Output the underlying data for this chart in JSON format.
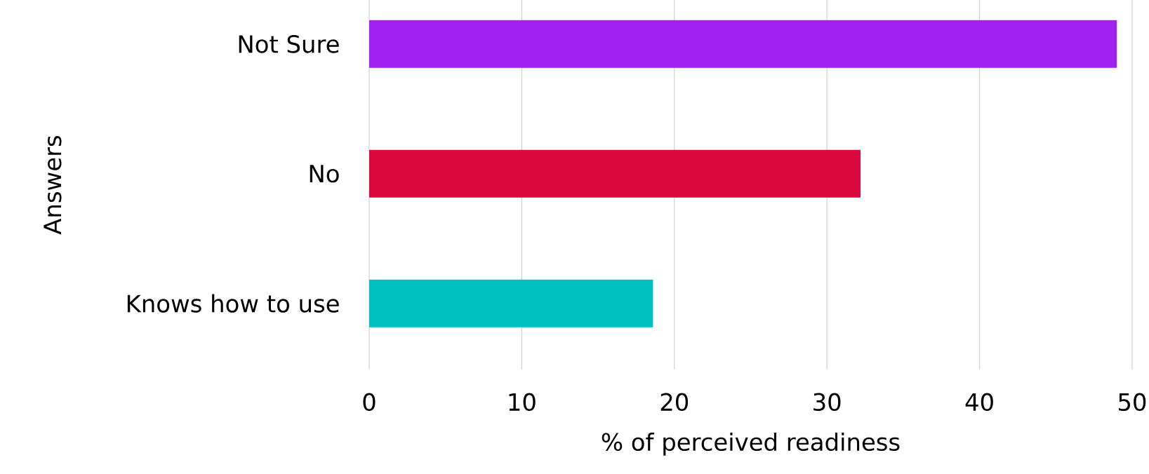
{
  "chart_data": {
    "type": "bar",
    "orientation": "horizontal",
    "categories": [
      "Not Sure",
      "No",
      "Knows how to use"
    ],
    "values": [
      49,
      32.2,
      18.6
    ],
    "colors": [
      "#a020f0",
      "#dc0a3c",
      "#00c0c0"
    ],
    "xlabel": "% of perceived readiness",
    "ylabel": "Answers",
    "xlim": [
      0,
      50
    ],
    "xticks": [
      0,
      10,
      20,
      30,
      40,
      50
    ],
    "grid": "x"
  }
}
